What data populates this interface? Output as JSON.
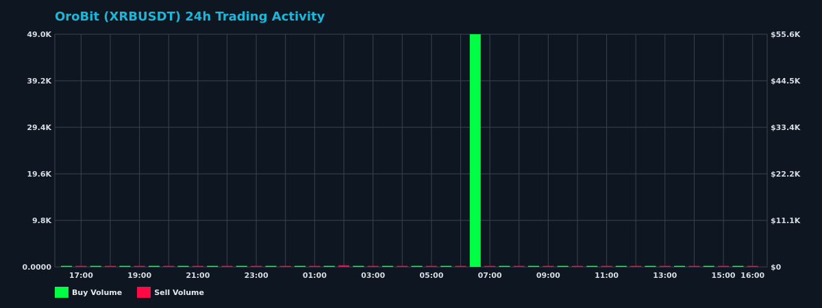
{
  "title": "OroBit (XRBUSDT) 24h Trading Activity",
  "legend": {
    "buy_label": "Buy Volume",
    "sell_label": "Sell Volume"
  },
  "colors": {
    "background": "#0d1621",
    "grid": "#3a4450",
    "title": "#1bb7d9",
    "buy": "#00ff44",
    "sell": "#ff0a46",
    "tick_text": "#d7dce2"
  },
  "chart_data": {
    "type": "bar",
    "title": "OroBit (XRBUSDT) 24h Trading Activity",
    "grid": true,
    "legend_position": "bottom-left",
    "y_left": {
      "ylim": [
        0,
        49000
      ],
      "ticks": [
        0,
        9800,
        19600,
        29400,
        39200,
        49000
      ],
      "tick_labels": [
        "0.0000",
        "9.8K",
        "19.6K",
        "29.4K",
        "39.2K",
        "49.0K"
      ]
    },
    "y_right": {
      "ylim": [
        0,
        55600
      ],
      "ticks": [
        0,
        11120,
        22240,
        33360,
        44480,
        55600
      ],
      "tick_labels": [
        "$0",
        "$11.1K",
        "$22.2K",
        "$33.4K",
        "$44.5K",
        "$55.6K"
      ]
    },
    "x_ticks": [
      {
        "hour": 17,
        "label": "17:00"
      },
      {
        "hour": 19,
        "label": "19:00"
      },
      {
        "hour": 21,
        "label": "21:00"
      },
      {
        "hour": 23,
        "label": "23:00"
      },
      {
        "hour": 25,
        "label": "01:00"
      },
      {
        "hour": 27,
        "label": "03:00"
      },
      {
        "hour": 29,
        "label": "05:00"
      },
      {
        "hour": 31,
        "label": "07:00"
      },
      {
        "hour": 33,
        "label": "09:00"
      },
      {
        "hour": 35,
        "label": "11:00"
      },
      {
        "hour": 37,
        "label": "13:00"
      },
      {
        "hour": 39,
        "label": "15:00"
      },
      {
        "hour": 40,
        "label": "16:00"
      }
    ],
    "series": [
      {
        "name": "Buy Volume",
        "values": [
          {
            "t": 16.5,
            "v": 60
          },
          {
            "t": 17.5,
            "v": 80
          },
          {
            "t": 18.5,
            "v": 70
          },
          {
            "t": 19.5,
            "v": 220
          },
          {
            "t": 20.5,
            "v": 210
          },
          {
            "t": 21.5,
            "v": 200
          },
          {
            "t": 22.5,
            "v": 90
          },
          {
            "t": 23.5,
            "v": 200
          },
          {
            "t": 24.5,
            "v": 190
          },
          {
            "t": 25.5,
            "v": 170
          },
          {
            "t": 26.5,
            "v": 170
          },
          {
            "t": 27.5,
            "v": 190
          },
          {
            "t": 28.5,
            "v": 180
          },
          {
            "t": 29.5,
            "v": 70
          },
          {
            "t": 30.5,
            "v": 49000
          },
          {
            "t": 31.5,
            "v": 70
          },
          {
            "t": 32.5,
            "v": 80
          },
          {
            "t": 33.5,
            "v": 90
          },
          {
            "t": 34.5,
            "v": 200
          },
          {
            "t": 35.5,
            "v": 190
          },
          {
            "t": 36.5,
            "v": 190
          },
          {
            "t": 37.5,
            "v": 190
          },
          {
            "t": 38.5,
            "v": 200
          },
          {
            "t": 39.5,
            "v": 190
          }
        ]
      },
      {
        "name": "Sell Volume",
        "values": [
          {
            "t": 17,
            "v": 40
          },
          {
            "t": 18,
            "v": 50
          },
          {
            "t": 19,
            "v": 60
          },
          {
            "t": 20,
            "v": 180
          },
          {
            "t": 21,
            "v": 60
          },
          {
            "t": 22,
            "v": 200
          },
          {
            "t": 23,
            "v": 180
          },
          {
            "t": 24,
            "v": 190
          },
          {
            "t": 25,
            "v": 60
          },
          {
            "t": 26,
            "v": 330
          },
          {
            "t": 27,
            "v": 40
          },
          {
            "t": 28,
            "v": 60
          },
          {
            "t": 29,
            "v": 190
          },
          {
            "t": 30,
            "v": 180
          },
          {
            "t": 31,
            "v": 170
          },
          {
            "t": 32,
            "v": 180
          },
          {
            "t": 33,
            "v": 170
          },
          {
            "t": 34,
            "v": 180
          },
          {
            "t": 35,
            "v": 60
          },
          {
            "t": 36,
            "v": 60
          },
          {
            "t": 37,
            "v": 60
          },
          {
            "t": 38,
            "v": 60
          },
          {
            "t": 39,
            "v": 40
          },
          {
            "t": 40,
            "v": 40
          }
        ]
      }
    ]
  }
}
